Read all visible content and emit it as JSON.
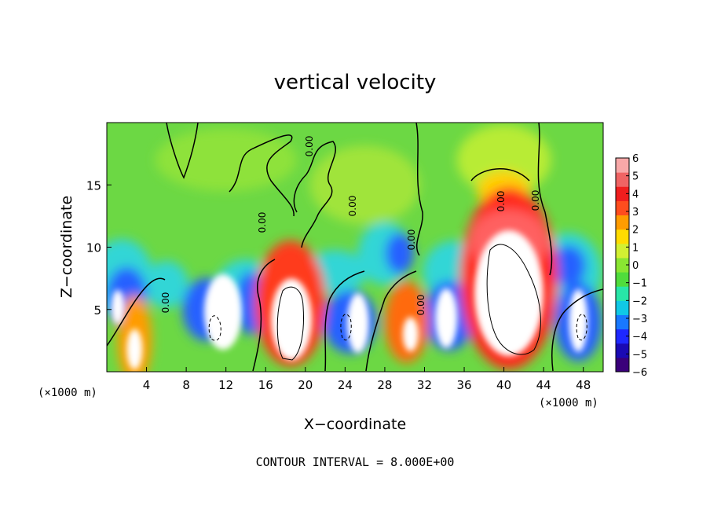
{
  "chart_data": {
    "type": "heatmap",
    "title": "vertical velocity",
    "xlabel": "X−coordinate",
    "ylabel": "Z−coordinate",
    "x_unit_left": "(×1000 m)",
    "x_unit_right": "(×1000 m)",
    "footer": "CONTOUR INTERVAL = 8.000E+00",
    "xlim": [
      0,
      50
    ],
    "ylim": [
      0,
      20
    ],
    "x_ticks": [
      4,
      8,
      12,
      16,
      20,
      24,
      28,
      32,
      36,
      40,
      44,
      48
    ],
    "y_ticks": [
      5,
      10,
      15
    ],
    "colorbar": {
      "range": [
        -6,
        6
      ],
      "tick_labels": [
        "6",
        "5",
        "4",
        "3",
        "2",
        "1",
        "0",
        "−1",
        "−2",
        "−3",
        "−4",
        "−5",
        "−6"
      ],
      "colors": [
        "#3a007a",
        "#1a0ab4",
        "#1e28ff",
        "#1878ff",
        "#10c8e6",
        "#28e6a8",
        "#50dc3c",
        "#8ae632",
        "#d2f032",
        "#ffdc00",
        "#ff9c00",
        "#ff4d1e",
        "#f01e1e",
        "#f06464",
        "#f8a8a8"
      ]
    },
    "contour_labels": [
      "0.00",
      "0.00",
      "0.00",
      "0.00",
      "0.00",
      "0.00",
      "0.00",
      "0.00"
    ],
    "updrafts": [
      {
        "x": 2.8,
        "z": 2.2,
        "w": 4
      },
      {
        "x": 18.5,
        "z": 4.5,
        "w": 10
      },
      {
        "x": 30.5,
        "z": 3.5,
        "w": 6
      },
      {
        "x": 40.5,
        "z": 6.5,
        "w": 12
      }
    ],
    "downdrafts": [
      {
        "x": 0.8,
        "z": 5.5,
        "w": -6
      },
      {
        "x": 11.5,
        "z": 4.8,
        "w": -8
      },
      {
        "x": 25.2,
        "z": 4.0,
        "w": -8
      },
      {
        "x": 34.2,
        "z": 4.3,
        "w": -8
      },
      {
        "x": 47.5,
        "z": 4.2,
        "w": -8
      }
    ]
  }
}
